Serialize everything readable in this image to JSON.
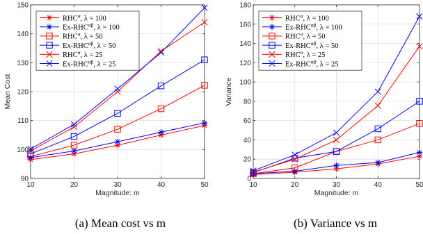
{
  "series_styles": [
    {
      "color": "#ff0000",
      "marker": "star"
    },
    {
      "color": "#0000ff",
      "marker": "star"
    },
    {
      "color": "#ff0000",
      "marker": "square"
    },
    {
      "color": "#0000ff",
      "marker": "square"
    },
    {
      "color": "#ff0000",
      "marker": "x"
    },
    {
      "color": "#0000ff",
      "marker": "x"
    }
  ],
  "legend_labels": [
    {
      "base": "RHC",
      "sup": "α",
      "rest": ", λ = 100"
    },
    {
      "base": "Ex-RHC",
      "sup": "αβ",
      "rest": ", λ = 100"
    },
    {
      "base": "RHC",
      "sup": "α",
      "rest": ", λ = 50"
    },
    {
      "base": "Ex-RHC",
      "sup": "αβ",
      "rest": ", λ = 50"
    },
    {
      "base": "RHC",
      "sup": "α",
      "rest": ", λ = 25"
    },
    {
      "base": "Ex-RHC",
      "sup": "αβ",
      "rest": ", λ = 25"
    }
  ],
  "chart_data": [
    {
      "type": "line",
      "caption": "(a) Mean cost vs m",
      "xlabel": "Magnitude: m",
      "ylabel": "Mean Cost",
      "x": [
        10,
        20,
        30,
        40,
        50
      ],
      "xlim": [
        10,
        50
      ],
      "ylim": [
        90,
        150
      ],
      "yticks": [
        90,
        100,
        110,
        120,
        130,
        140,
        150
      ],
      "xticks": [
        10,
        20,
        30,
        40,
        50
      ],
      "grid": true,
      "legend_position": "top-left",
      "series": [
        {
          "name": "RHCα, λ = 100",
          "values": [
            96.5,
            98.5,
            101.5,
            105,
            108.3
          ]
        },
        {
          "name": "Ex-RHCαβ, λ = 100",
          "values": [
            97.2,
            99.5,
            102.7,
            106,
            109.2
          ]
        },
        {
          "name": "RHCα, λ = 50",
          "values": [
            97.6,
            101.5,
            107,
            114.1,
            122.2
          ]
        },
        {
          "name": "Ex-RHCαβ, λ = 50",
          "values": [
            98.5,
            104.5,
            112.5,
            122,
            131
          ]
        },
        {
          "name": "RHCα, λ = 25",
          "values": [
            99.5,
            107.8,
            120,
            134,
            144
          ]
        },
        {
          "name": "Ex-RHCαβ, λ = 25",
          "values": [
            100.2,
            108.7,
            121,
            133.5,
            149
          ]
        }
      ]
    },
    {
      "type": "line",
      "caption": "(b) Variance vs m",
      "xlabel": "Magnitude: m",
      "ylabel": "Variance",
      "x": [
        10,
        20,
        30,
        40,
        50
      ],
      "xlim": [
        10,
        50
      ],
      "ylim": [
        0,
        180
      ],
      "yticks": [
        0,
        20,
        40,
        60,
        80,
        100,
        120,
        140,
        160,
        180
      ],
      "xticks": [
        10,
        20,
        30,
        40,
        50
      ],
      "grid": true,
      "legend_position": "top-left",
      "series": [
        {
          "name": "RHCα, λ = 100",
          "values": [
            4,
            6.5,
            10,
            15,
            23
          ]
        },
        {
          "name": "Ex-RHCαβ, λ = 100",
          "values": [
            5,
            7.5,
            13.5,
            16.5,
            27
          ]
        },
        {
          "name": "RHCα, λ = 50",
          "values": [
            5,
            11,
            28,
            40,
            57
          ]
        },
        {
          "name": "Ex-RHCαβ, λ = 50",
          "values": [
            6,
            21,
            28,
            51.5,
            80
          ]
        },
        {
          "name": "RHCα, λ = 25",
          "values": [
            6.5,
            20,
            40,
            75.5,
            137
          ]
        },
        {
          "name": "Ex-RHCαβ, λ = 25",
          "values": [
            8,
            24.5,
            47.5,
            90,
            168
          ]
        }
      ]
    }
  ]
}
